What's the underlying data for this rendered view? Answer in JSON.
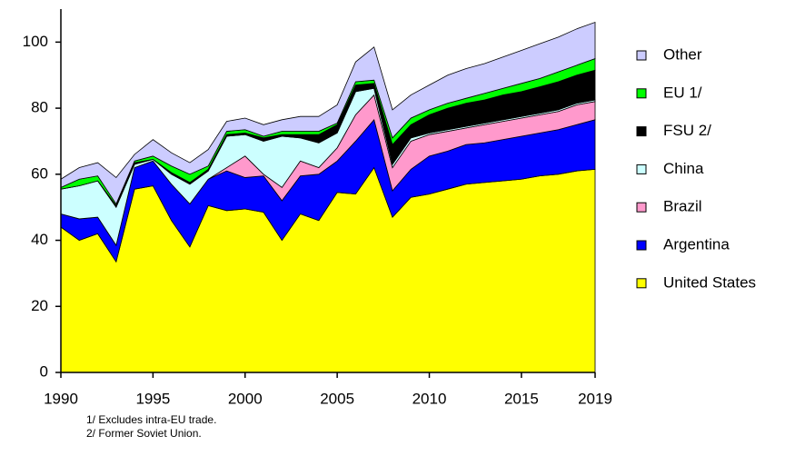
{
  "chart_data": {
    "type": "stacked_area",
    "x": [
      1990,
      1991,
      1992,
      1993,
      1994,
      1995,
      1996,
      1997,
      1998,
      1999,
      2000,
      2001,
      2002,
      2003,
      2004,
      2005,
      2006,
      2007,
      2008,
      2009,
      2010,
      2011,
      2012,
      2013,
      2014,
      2015,
      2016,
      2017,
      2018,
      2019
    ],
    "xlim": [
      1990,
      2019
    ],
    "xticks": [
      1990,
      1995,
      2000,
      2005,
      2010,
      2015,
      2019
    ],
    "ylim": [
      0,
      110
    ],
    "yticks": [
      0,
      20,
      40,
      60,
      80,
      100
    ],
    "legend": "right",
    "series": [
      {
        "name": "United States",
        "color": "#ffff00",
        "values": [
          44,
          40,
          42,
          33.5,
          55.5,
          56.5,
          46,
          38,
          50.5,
          49,
          49.5,
          48.5,
          40,
          48,
          46,
          54.5,
          54,
          62,
          47,
          53,
          54,
          55.5,
          57,
          57.5,
          58,
          58.5,
          59.5,
          60,
          61,
          61.5
        ]
      },
      {
        "name": "Argentina",
        "color": "#0000ff",
        "values": [
          4,
          6.5,
          5,
          5,
          6.5,
          7.5,
          11,
          13,
          8,
          12,
          9.5,
          11,
          12,
          11.5,
          14,
          9.5,
          16,
          14.5,
          8,
          8.5,
          11.5,
          11.5,
          12,
          12,
          12.5,
          13,
          13,
          13.5,
          14,
          15
        ]
      },
      {
        "name": "Brazil",
        "color": "#ff99cc",
        "values": [
          0,
          0,
          0,
          0,
          0,
          0,
          0,
          0,
          0,
          1,
          6.5,
          0.5,
          4,
          4.5,
          2,
          4,
          8,
          7.5,
          7,
          8.5,
          6.5,
          6,
          5,
          5.5,
          5.5,
          5.5,
          5.5,
          5.5,
          6,
          5.5
        ]
      },
      {
        "name": "China",
        "color": "#ccffff",
        "values": [
          7.5,
          10,
          11,
          11.5,
          1,
          0.5,
          3,
          6,
          2.5,
          9.5,
          6.5,
          10,
          15.5,
          7,
          7.5,
          4.5,
          7,
          2,
          1,
          1,
          0.5,
          0.5,
          0.5,
          0.5,
          0.5,
          0.5,
          0.5,
          0.5,
          0.5,
          0.5
        ]
      },
      {
        "name": "FSU 2/",
        "color": "#000000",
        "values": [
          0,
          0,
          0,
          0.5,
          0.5,
          0,
          0.5,
          0.5,
          0.5,
          0.5,
          0.5,
          1,
          0.5,
          1,
          2.5,
          2.5,
          2,
          1.5,
          6,
          4,
          5.5,
          6.5,
          7,
          7,
          7.5,
          7.5,
          8,
          8.5,
          8.5,
          9
        ]
      },
      {
        "name": "EU 1/",
        "color": "#00ff00",
        "values": [
          0.5,
          2,
          1.5,
          0.5,
          0.5,
          1,
          2,
          2.5,
          1,
          1,
          1,
          0.5,
          1,
          1,
          1,
          0.5,
          1,
          1,
          2,
          2,
          1.5,
          1.5,
          1.5,
          2,
          2,
          2.5,
          2.5,
          3,
          3,
          3.5
        ]
      },
      {
        "name": "Other",
        "color": "#ccccff",
        "values": [
          2.5,
          3.5,
          4,
          8,
          2,
          5,
          4,
          3.5,
          5,
          3,
          3.5,
          3.5,
          3.5,
          4.5,
          4.5,
          5.5,
          6,
          10,
          8.5,
          7,
          7.5,
          8.5,
          9,
          9,
          9.5,
          10,
          10.5,
          10.5,
          11,
          11
        ]
      }
    ],
    "footnotes": [
      "1/ Excludes intra-EU trade.",
      "2/ Former Soviet Union."
    ]
  }
}
